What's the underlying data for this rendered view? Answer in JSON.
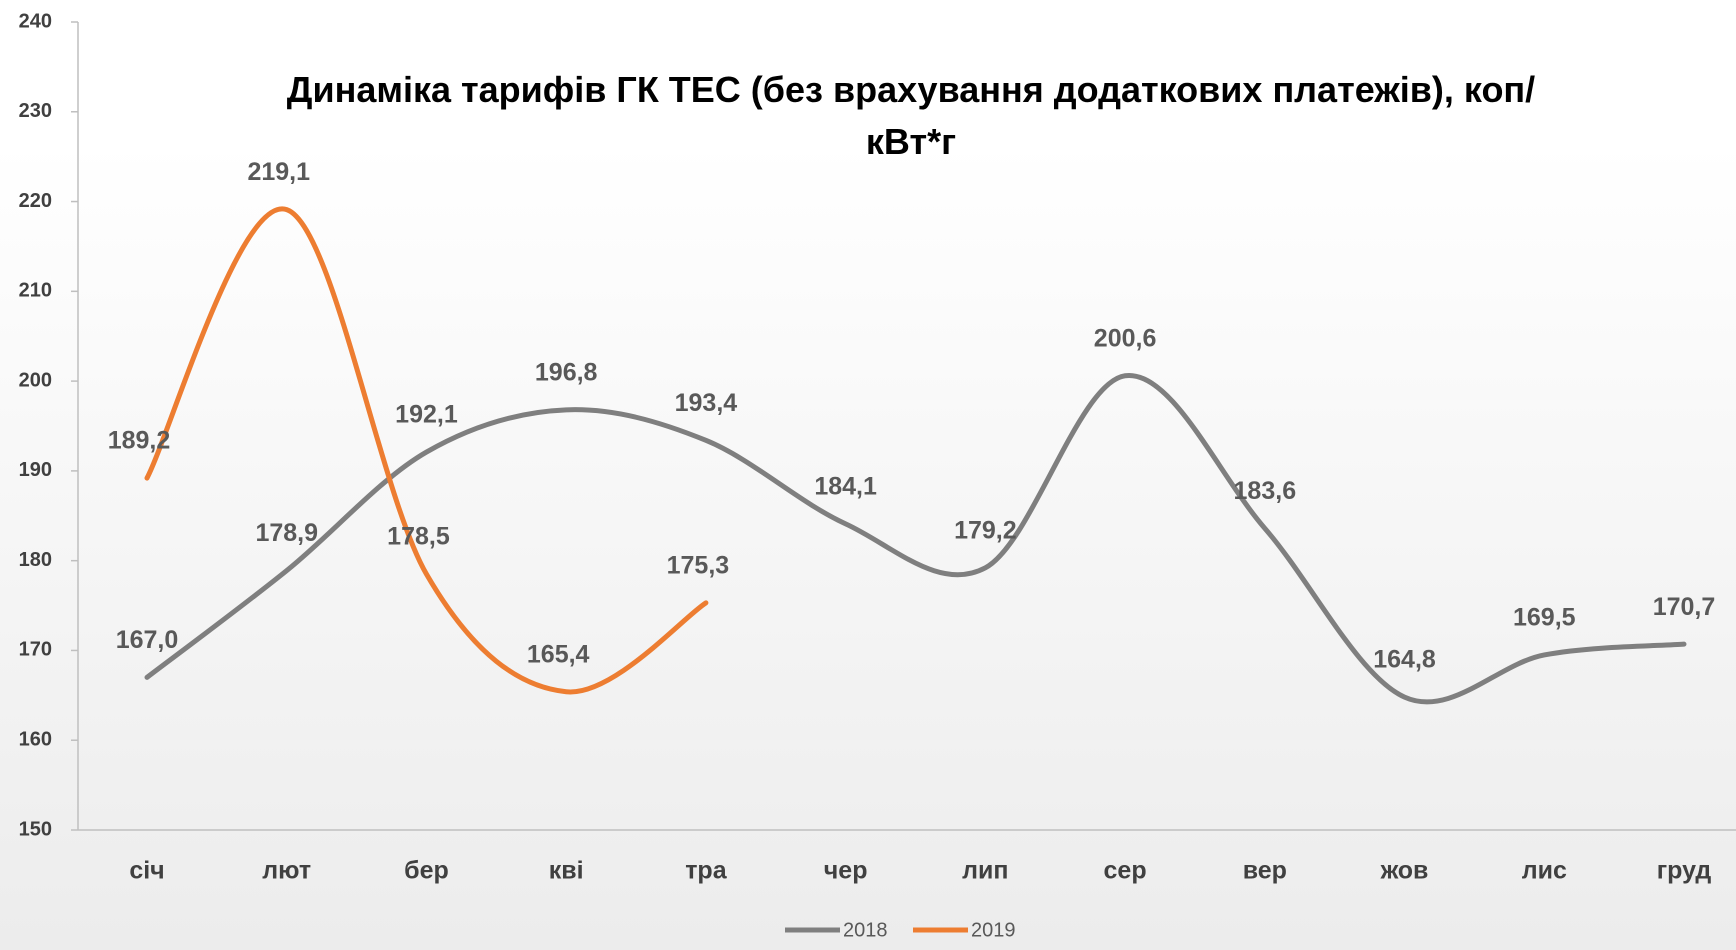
{
  "chart_data": {
    "type": "line",
    "title": "Динаміка тарифів ГК ТЕС (без врахування додаткових платежів), коп/кВт*г",
    "categories": [
      "січ",
      "лют",
      "бер",
      "кві",
      "тра",
      "чер",
      "лип",
      "сер",
      "вер",
      "жов",
      "лис",
      "груд"
    ],
    "series": [
      {
        "name": "2018",
        "color": "#7f7f7f",
        "values": [
          167.0,
          178.9,
          192.1,
          196.8,
          193.4,
          184.1,
          179.2,
          200.6,
          183.6,
          164.8,
          169.5,
          170.7
        ],
        "value_labels": [
          "167,0",
          "178,9",
          "192,1",
          "196,8",
          "193,4",
          "184,1",
          "179,2",
          "200,6",
          "183,6",
          "164,8",
          "169,5",
          "170,7"
        ]
      },
      {
        "name": "2019",
        "color": "#ed7d31",
        "values": [
          189.2,
          219.1,
          178.5,
          165.4,
          175.3,
          null,
          null,
          null,
          null,
          null,
          null,
          null
        ],
        "value_labels": [
          "189,2",
          "219,1",
          "178,5",
          "165,4",
          "175,3",
          null,
          null,
          null,
          null,
          null,
          null,
          null
        ]
      }
    ],
    "ylim": [
      150,
      240
    ],
    "yticks": [
      150,
      160,
      170,
      180,
      190,
      200,
      210,
      220,
      230,
      240
    ],
    "grid": false,
    "smooth": true,
    "legend": "bottom"
  }
}
